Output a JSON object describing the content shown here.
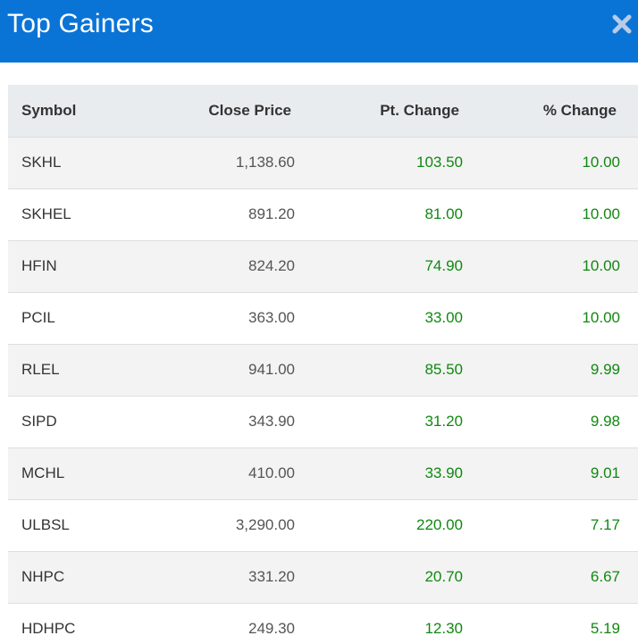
{
  "modal": {
    "title": "Top Gainers",
    "close_icon": "close-x-icon"
  },
  "colors": {
    "header_bg": "#0a74d6",
    "positive": "#118811",
    "row_alt": "#f3f3f3",
    "thead_bg": "#e9ecef"
  },
  "table": {
    "headers": [
      "Symbol",
      "Close Price",
      "Pt. Change",
      "% Change"
    ],
    "rows": [
      {
        "symbol": "SKHL",
        "close": "1,138.60",
        "pt": "103.50",
        "pct": "10.00"
      },
      {
        "symbol": "SKHEL",
        "close": "891.20",
        "pt": "81.00",
        "pct": "10.00"
      },
      {
        "symbol": "HFIN",
        "close": "824.20",
        "pt": "74.90",
        "pct": "10.00"
      },
      {
        "symbol": "PCIL",
        "close": "363.00",
        "pt": "33.00",
        "pct": "10.00"
      },
      {
        "symbol": "RLEL",
        "close": "941.00",
        "pt": "85.50",
        "pct": "9.99"
      },
      {
        "symbol": "SIPD",
        "close": "343.90",
        "pt": "31.20",
        "pct": "9.98"
      },
      {
        "symbol": "MCHL",
        "close": "410.00",
        "pt": "33.90",
        "pct": "9.01"
      },
      {
        "symbol": "ULBSL",
        "close": "3,290.00",
        "pt": "220.00",
        "pct": "7.17"
      },
      {
        "symbol": "NHPC",
        "close": "331.20",
        "pt": "20.70",
        "pct": "6.67"
      },
      {
        "symbol": "HDHPC",
        "close": "249.30",
        "pt": "12.30",
        "pct": "5.19"
      }
    ]
  }
}
